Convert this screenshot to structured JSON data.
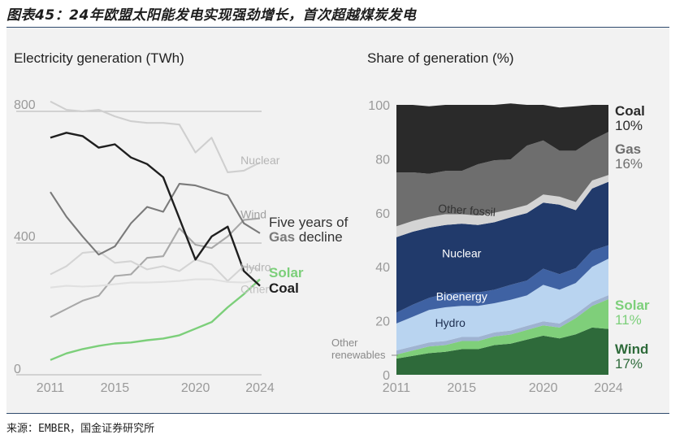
{
  "figure_title": "图表45：24年欧盟太阳能发电实现强劲增长，首次超越煤炭发电",
  "source": "来源：EMBER，国金证券研究所",
  "colors": {
    "coal": "#1f1f1f",
    "gas": "#7a7a7a",
    "nuclear_line": "#cfcfcf",
    "wind_line": "#a8a8a8",
    "hydro_line": "#d4d4d4",
    "other_line": "#e0e0e0",
    "solar": "#7ccf7a",
    "area_coal": "#2a2a2a",
    "area_gas": "#6e6e6e",
    "area_other_fossil": "#d4d4d4",
    "area_nuclear": "#213a6b",
    "area_bioenergy": "#3f62a3",
    "area_hydro": "#b9d4f0",
    "area_other_ren": "#9fb3d1",
    "area_solar": "#7fcf7a",
    "area_wind": "#2e6a3a"
  },
  "chart_data": [
    {
      "type": "line",
      "title": "Electricity generation (TWh)",
      "x": [
        2011,
        2012,
        2013,
        2014,
        2015,
        2016,
        2017,
        2018,
        2019,
        2020,
        2021,
        2022,
        2023,
        2024
      ],
      "xticks": [
        "2011",
        "2015",
        "2020",
        "2024"
      ],
      "yticks": [
        "0",
        "400",
        "800"
      ],
      "ylim": [
        0,
        830
      ],
      "series": [
        {
          "name": "Nuclear",
          "key": "nuclear_line",
          "values": [
            830,
            805,
            800,
            805,
            785,
            770,
            765,
            765,
            760,
            675,
            720,
            615,
            620,
            645
          ]
        },
        {
          "name": "Wind",
          "key": "wind_line",
          "values": [
            175,
            200,
            225,
            240,
            300,
            305,
            355,
            360,
            445,
            395,
            385,
            420,
            470,
            475
          ]
        },
        {
          "name": "Hydro",
          "key": "hydro_line",
          "values": [
            305,
            330,
            370,
            375,
            340,
            345,
            320,
            330,
            315,
            350,
            335,
            285,
            330,
            320
          ]
        },
        {
          "name": "Other",
          "key": "other_line",
          "values": [
            265,
            270,
            268,
            270,
            275,
            280,
            280,
            282,
            285,
            290,
            290,
            282,
            280,
            290
          ]
        },
        {
          "name": "Solar",
          "key": "solar",
          "values": [
            45,
            65,
            78,
            88,
            95,
            98,
            105,
            110,
            120,
            140,
            160,
            205,
            245,
            290
          ]
        },
        {
          "name": "Gas",
          "key": "gas",
          "values": [
            555,
            480,
            420,
            365,
            390,
            460,
            510,
            495,
            580,
            575,
            560,
            545,
            460,
            430
          ]
        },
        {
          "name": "Coal",
          "key": "coal",
          "values": [
            720,
            735,
            725,
            690,
            700,
            660,
            640,
            600,
            475,
            350,
            420,
            450,
            315,
            270
          ]
        }
      ],
      "line_labels": [
        "Nuclear",
        "Wind",
        "Hydro",
        "Other"
      ],
      "annotation": [
        "Five years of",
        "Gas",
        "decline"
      ],
      "end_labels": [
        {
          "name": "Solar",
          "key": "solar"
        },
        {
          "name": "Coal",
          "key": "coal"
        }
      ]
    },
    {
      "type": "area",
      "title": "Share of generation (%)",
      "x": [
        2011,
        2012,
        2013,
        2014,
        2015,
        2016,
        2017,
        2018,
        2019,
        2020,
        2021,
        2022,
        2023,
        2024
      ],
      "xticks": [
        "2011",
        "2015",
        "2020",
        "2024"
      ],
      "yticks": [
        "0",
        "20",
        "40",
        "60",
        "80",
        "100"
      ],
      "ylim": [
        0,
        100
      ],
      "stack_order": [
        "Wind",
        "Solar",
        "Other renewables",
        "Hydro",
        "Bioenergy",
        "Nuclear",
        "Other fossil",
        "Gas",
        "Coal"
      ],
      "series": [
        {
          "name": "Wind",
          "key": "area_wind",
          "values": [
            6,
            7,
            8,
            8.5,
            9.5,
            9.5,
            11,
            11.5,
            13,
            14.5,
            13.5,
            15,
            17.5,
            17
          ]
        },
        {
          "name": "Solar",
          "key": "area_solar",
          "values": [
            1.5,
            2,
            2.5,
            2.5,
            3,
            3,
            3.2,
            3.4,
            3.6,
            3.8,
            4,
            6,
            8,
            11
          ]
        },
        {
          "name": "Other renewables",
          "key": "area_other_ren",
          "values": [
            1.5,
            1.5,
            1.5,
            1.5,
            1.5,
            1.5,
            1.5,
            1.5,
            1.5,
            1.5,
            1.5,
            1.5,
            1.5,
            1.5
          ]
        },
        {
          "name": "Hydro",
          "key": "area_hydro",
          "values": [
            10,
            11,
            12,
            12.5,
            11.5,
            11.5,
            10.8,
            11.4,
            11.3,
            13.5,
            12.5,
            11.5,
            13,
            13.5
          ]
        },
        {
          "name": "Bioenergy",
          "key": "area_bioenergy",
          "values": [
            4,
            4.5,
            4.5,
            5,
            5,
            5,
            5,
            5.5,
            5.5,
            6,
            5.8,
            5.5,
            6,
            5
          ]
        },
        {
          "name": "Nuclear",
          "key": "area_nuclear",
          "values": [
            28,
            27,
            26,
            25.5,
            25.5,
            25,
            25,
            25,
            25,
            24.5,
            25.7,
            21.5,
            23,
            23.5
          ]
        },
        {
          "name": "Other fossil",
          "key": "area_other_fossil",
          "values": [
            4,
            4,
            4,
            4,
            3.5,
            3.5,
            3.5,
            3,
            3,
            3,
            3,
            3,
            3,
            2.5
          ]
        },
        {
          "name": "Gas",
          "key": "area_gas",
          "values": [
            20,
            18,
            16,
            16,
            16,
            19,
            19.5,
            18.5,
            22,
            20,
            17,
            19,
            15,
            16
          ]
        },
        {
          "name": "Coal",
          "key": "area_coal",
          "values": [
            25,
            25,
            25,
            24.5,
            24.5,
            22,
            20.5,
            20.7,
            15.1,
            13.2,
            16,
            16.5,
            13,
            10
          ]
        }
      ],
      "inner_labels": [
        {
          "name": "Other fossil",
          "year": 2015.3,
          "value": 59.5
        },
        {
          "name": "Nuclear",
          "year": 2015.0,
          "value": 43.5
        },
        {
          "name": "Bioenergy",
          "year": 2015.0,
          "value": 27.5
        },
        {
          "name": "Hydro",
          "year": 2014.3,
          "value": 17.8
        }
      ],
      "other_label": [
        "Other",
        "renewables"
      ],
      "end_labels": [
        {
          "name": "Coal",
          "pct": "10%",
          "key": "area_coal"
        },
        {
          "name": "Gas",
          "pct": "16%",
          "key": "area_gas"
        },
        {
          "name": "Solar",
          "pct": "11%",
          "key": "solar"
        },
        {
          "name": "Wind",
          "pct": "17%",
          "key": "area_wind"
        }
      ]
    }
  ]
}
